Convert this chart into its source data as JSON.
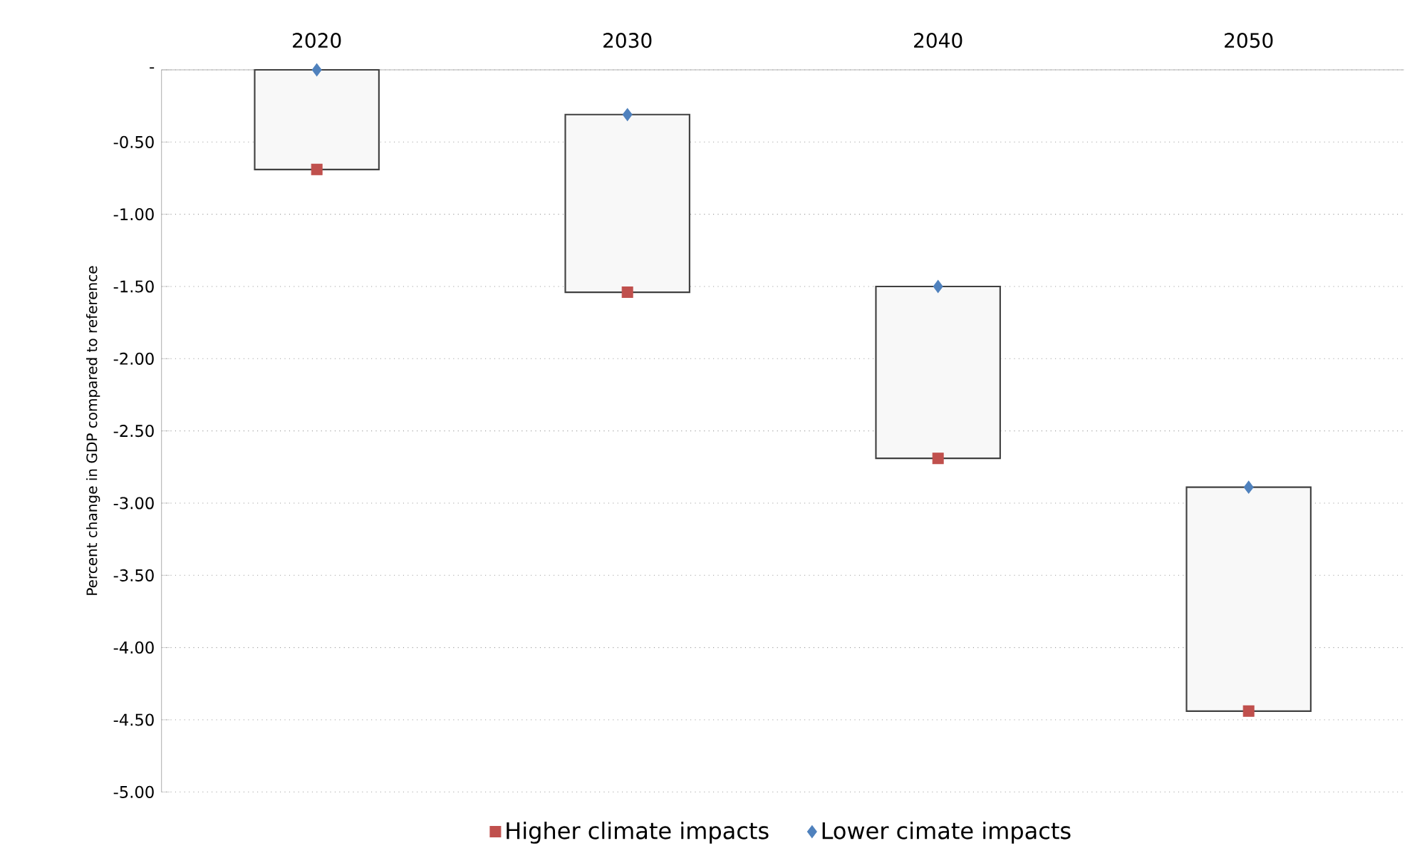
{
  "chart_data": {
    "type": "bar",
    "ylabel": "Percent change in GDP compared to reference",
    "categories": [
      "2020",
      "2030",
      "2040",
      "2050"
    ],
    "series": [
      {
        "color": "#f8f8f8",
        "base": [
          -0.69,
          -1.54,
          -2.69,
          -4.44
        ],
        "values": [
          0.69,
          1.23,
          1.19,
          1.55
        ]
      },
      {
        "type": "scatter",
        "name": "Higher climate impacts",
        "color": "#c0504d",
        "marker": "square",
        "values": [
          -0.69,
          -1.54,
          -2.69,
          -4.44
        ]
      },
      {
        "type": "scatter",
        "name": "Lower cimate impacts",
        "color": "#4f81bd",
        "marker": "diamond",
        "values": [
          0,
          -0.31,
          -1.5,
          -2.89
        ]
      }
    ],
    "ylim": [
      -5,
      0
    ],
    "yticks": [
      {
        "value": 0,
        "label": "-"
      },
      {
        "value": -0.5,
        "label": "-0.50"
      },
      {
        "value": -1,
        "label": "-1.00"
      },
      {
        "value": -1.5,
        "label": "-1.50"
      },
      {
        "value": -2,
        "label": "-2.00"
      },
      {
        "value": -2.5,
        "label": "-2.50"
      },
      {
        "value": -3,
        "label": "-3.00"
      },
      {
        "value": -3.5,
        "label": "-3.50"
      },
      {
        "value": -4,
        "label": "-4.00"
      },
      {
        "value": -4.5,
        "label": "-4.50"
      },
      {
        "value": -5,
        "label": "-5.00"
      }
    ],
    "grid": "y",
    "legend": "bottom"
  }
}
